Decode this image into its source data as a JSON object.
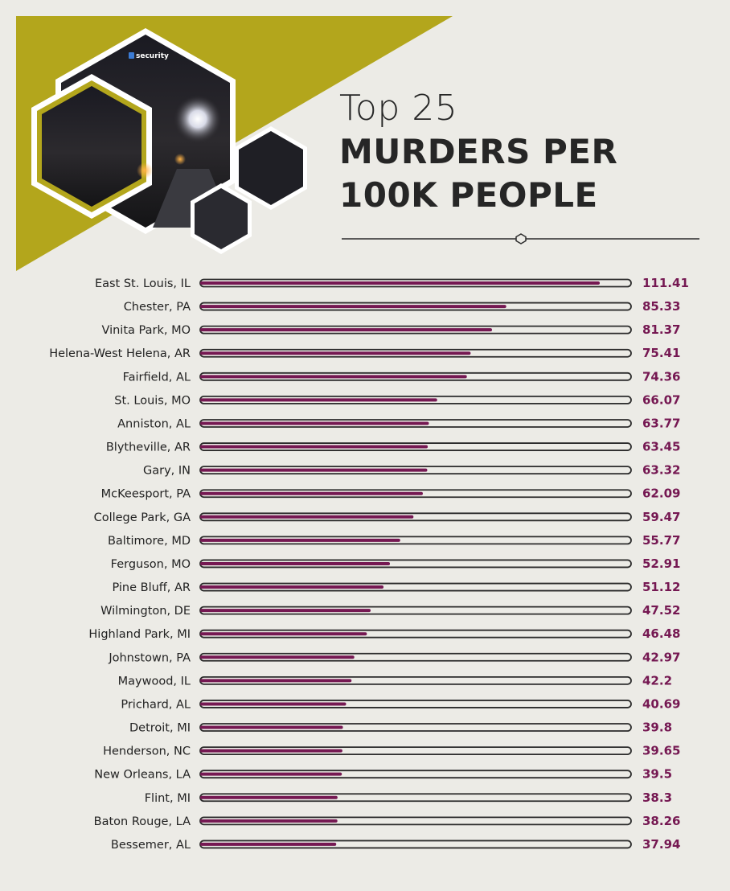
{
  "logo_text": "security",
  "title": {
    "line1": "Top 25",
    "line2": "MURDERS PER",
    "line3": "100K PEOPLE"
  },
  "colors": {
    "background": "#ecebe6",
    "triangle": "#b3a61c",
    "bar_fill": "#751852",
    "bar_outline": "#2b2b2b",
    "value_text": "#751852"
  },
  "chart_data": {
    "type": "bar",
    "orientation": "horizontal",
    "title": "Top 25 MURDERS PER 100K PEOPLE",
    "categories": [
      "East St. Louis, IL",
      "Chester, PA",
      "Vinita Park, MO",
      "Helena-West Helena, AR",
      "Fairfield, AL",
      "St. Louis, MO",
      "Anniston, AL",
      "Blytheville, AR",
      "Gary, IN",
      "McKeesport, PA",
      "College Park, GA",
      "Baltimore, MD",
      "Ferguson, MO",
      "Pine Bluff, AR",
      "Wilmington, DE",
      "Highland Park, MI",
      "Johnstown, PA",
      "Maywood, IL",
      "Prichard, AL",
      "Detroit, MI",
      "Henderson, NC",
      "New Orleans, LA",
      "Flint, MI",
      "Baton Rouge, LA",
      "Bessemer, AL"
    ],
    "values": [
      111.41,
      85.33,
      81.37,
      75.41,
      74.36,
      66.07,
      63.77,
      63.45,
      63.32,
      62.09,
      59.47,
      55.77,
      52.91,
      51.12,
      47.52,
      46.48,
      42.97,
      42.2,
      40.69,
      39.8,
      39.65,
      39.5,
      38.3,
      38.26,
      37.94
    ],
    "value_labels": [
      "111.41",
      "85.33",
      "81.37",
      "75.41",
      "74.36",
      "66.07",
      "63.77",
      "63.45",
      "63.32",
      "62.09",
      "59.47",
      "55.77",
      "52.91",
      "51.12",
      "47.52",
      "46.48",
      "42.97",
      "42.2",
      "40.69",
      "39.8",
      "39.65",
      "39.5",
      "38.3",
      "38.26",
      "37.94"
    ],
    "xlim": [
      0,
      120
    ]
  }
}
